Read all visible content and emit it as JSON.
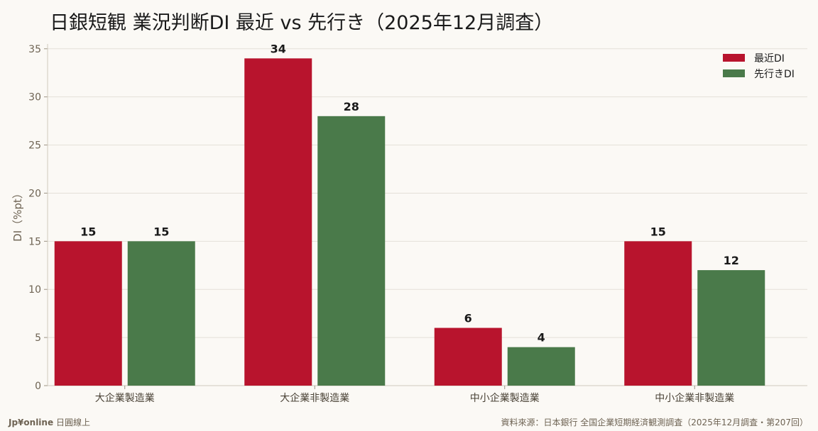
{
  "header": {
    "title": "日銀短観 業況判断DI 最近 vs 先行き（2025年12月調査）"
  },
  "chart_data": {
    "type": "bar",
    "title": "日銀短観 業況判断DI 最近 vs 先行き（2025年12月調査）",
    "xlabel": "",
    "ylabel": "DI（%pt）",
    "ylim": [
      0,
      35.5
    ],
    "yticks": [
      0,
      5,
      10,
      15,
      20,
      25,
      30,
      35
    ],
    "grid": true,
    "legend_position": "top-right",
    "categories": [
      "大企業製造業",
      "大企業非製造業",
      "中小企業製造業",
      "中小企業非製造業"
    ],
    "series": [
      {
        "name": "最近DI",
        "values": [
          15,
          34,
          6,
          15
        ],
        "color": "#b8142d"
      },
      {
        "name": "先行きDI",
        "values": [
          15,
          28,
          4,
          12
        ],
        "color": "#4a7a4a"
      }
    ]
  },
  "footer": {
    "brand": "Jp¥online",
    "brand_sub": "日圓線上",
    "source": "資料來源：日本銀行 全国企業短期経済観測調査（2025年12月調査・第207回）"
  }
}
